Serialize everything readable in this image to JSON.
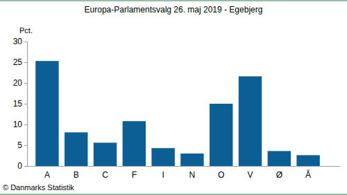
{
  "chart_data": {
    "type": "bar",
    "title": "Europa-Parlamentsvalg 26. maj 2019 - Egebjerg",
    "y_label": "Pct.",
    "source": "© Danmarks Statistik",
    "categories": [
      "A",
      "B",
      "C",
      "F",
      "I",
      "N",
      "O",
      "V",
      "Ø",
      "Å"
    ],
    "values": [
      25.3,
      8.1,
      5.6,
      10.8,
      4.3,
      3.0,
      15.0,
      21.6,
      3.6,
      2.6
    ],
    "color": "#0b5f94",
    "ylim": [
      0,
      30
    ],
    "yticks": [
      0,
      5,
      10,
      15,
      20,
      25,
      30
    ],
    "grid": false
  }
}
